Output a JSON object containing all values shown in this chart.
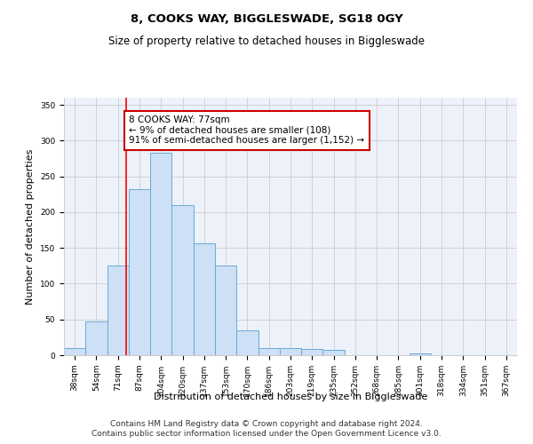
{
  "title": "8, COOKS WAY, BIGGLESWADE, SG18 0GY",
  "subtitle": "Size of property relative to detached houses in Biggleswade",
  "xlabel": "Distribution of detached houses by size in Biggleswade",
  "ylabel": "Number of detached properties",
  "bar_labels": [
    "38sqm",
    "54sqm",
    "71sqm",
    "87sqm",
    "104sqm",
    "120sqm",
    "137sqm",
    "153sqm",
    "170sqm",
    "186sqm",
    "203sqm",
    "219sqm",
    "235sqm",
    "252sqm",
    "268sqm",
    "285sqm",
    "301sqm",
    "318sqm",
    "334sqm",
    "351sqm",
    "367sqm"
  ],
  "bar_values": [
    10,
    47,
    125,
    232,
    283,
    210,
    157,
    125,
    35,
    10,
    10,
    9,
    8,
    0,
    0,
    0,
    2,
    0,
    0,
    0,
    0
  ],
  "bar_color": "#cde0f5",
  "bar_edge_color": "#6aaad4",
  "red_line_x": 2.37,
  "annotation_text": "8 COOKS WAY: 77sqm\n← 9% of detached houses are smaller (108)\n91% of semi-detached houses are larger (1,152) →",
  "annotation_box_color": "#ffffff",
  "annotation_box_edge_color": "#cc0000",
  "ylim": [
    0,
    360
  ],
  "yticks": [
    0,
    50,
    100,
    150,
    200,
    250,
    300,
    350
  ],
  "grid_color": "#cccccc",
  "background_color": "#edf2fa",
  "footer_line1": "Contains HM Land Registry data © Crown copyright and database right 2024.",
  "footer_line2": "Contains public sector information licensed under the Open Government Licence v3.0.",
  "title_fontsize": 9.5,
  "subtitle_fontsize": 8.5,
  "tick_fontsize": 6.5,
  "ylabel_fontsize": 8,
  "xlabel_fontsize": 8,
  "annotation_fontsize": 7.5,
  "footer_fontsize": 6.5
}
